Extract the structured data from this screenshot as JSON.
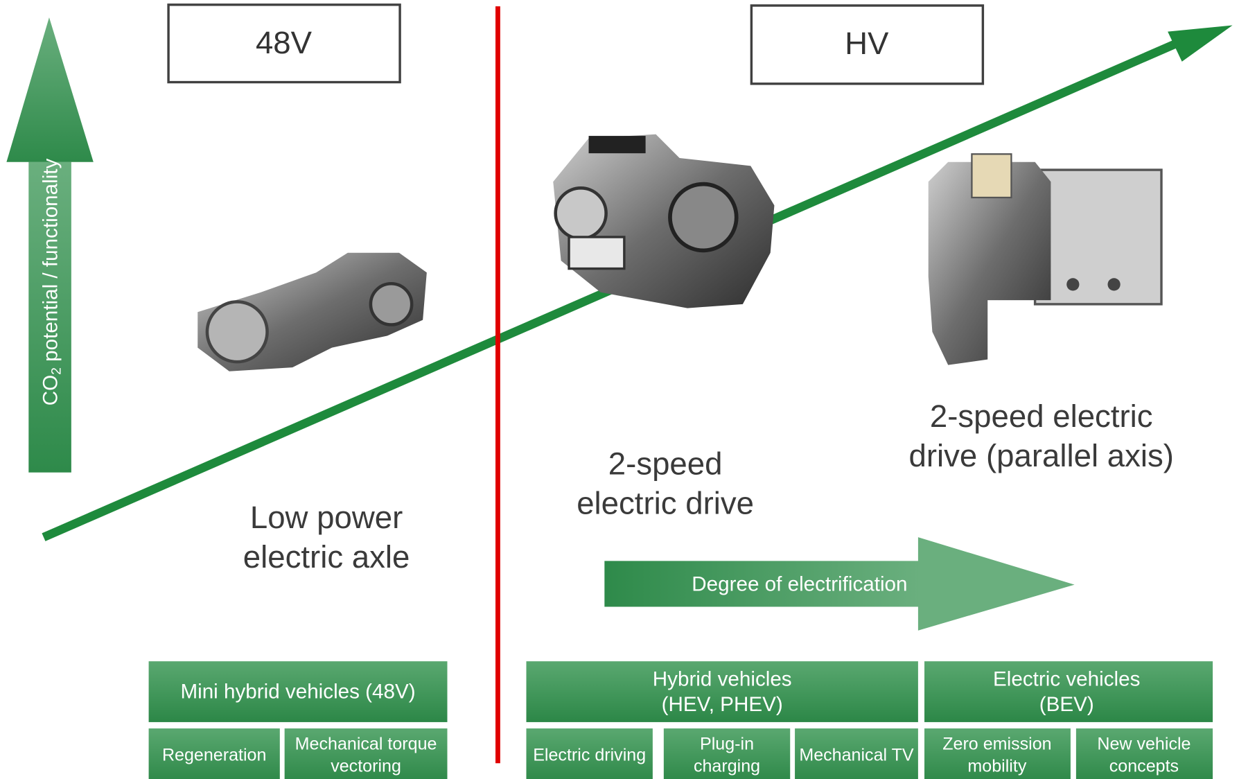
{
  "voltage_labels": [
    "48V",
    "HV"
  ],
  "y_axis": {
    "label_prefix": "CO",
    "label_subscript": "2",
    "label_suffix": " potential / functionality"
  },
  "products": [
    {
      "label_lines": [
        "Low power",
        "electric axle"
      ]
    },
    {
      "label_lines": [
        "2-speed",
        "electric drive"
      ]
    },
    {
      "label_lines": [
        "2-speed electric",
        "drive (parallel axis)"
      ]
    }
  ],
  "x_axis_label": "Degree of electrification",
  "vehicle_groups": [
    {
      "title_lines": [
        "Mini hybrid vehicles (48V)"
      ],
      "features": [
        [
          "Regeneration"
        ],
        [
          "Mechanical torque",
          "vectoring"
        ]
      ]
    },
    {
      "title_lines": [
        "Hybrid vehicles",
        "(HEV, PHEV)"
      ],
      "features": [
        [
          "Electric driving"
        ],
        [
          "Plug-in",
          "charging"
        ],
        [
          "Mechanical TV"
        ]
      ]
    },
    {
      "title_lines": [
        "Electric vehicles",
        "(BEV)"
      ],
      "features": [
        [
          "Zero emission",
          "mobility"
        ],
        [
          "New vehicle",
          "concepts"
        ]
      ]
    }
  ]
}
